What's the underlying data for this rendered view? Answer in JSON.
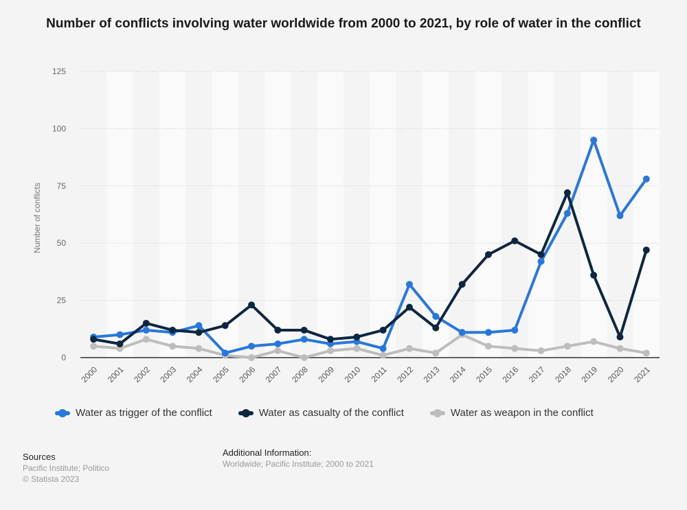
{
  "title": "Number of conflicts involving water worldwide from 2000 to 2021, by role of water in the conflict",
  "chart_data": {
    "type": "line",
    "title": "Number of conflicts involving water worldwide from 2000 to 2021, by role of water in the conflict",
    "xlabel": "",
    "ylabel": "Number of conflicts",
    "ylim": [
      0,
      125
    ],
    "yticks": [
      0,
      25,
      50,
      75,
      100,
      125
    ],
    "grid": true,
    "legend_position": "bottom",
    "categories": [
      "2000",
      "2001",
      "2002",
      "2003",
      "2004",
      "2005",
      "2006",
      "2007",
      "2008",
      "2009",
      "2010",
      "2011",
      "2012",
      "2013",
      "2014",
      "2015",
      "2016",
      "2017",
      "2018",
      "2019",
      "2020",
      "2021"
    ],
    "series": [
      {
        "name": "Water as trigger of the conflict",
        "color": "#2878db",
        "values": [
          9,
          10,
          12,
          11,
          14,
          2,
          5,
          6,
          8,
          6,
          7,
          4,
          32,
          18,
          11,
          11,
          12,
          42,
          63,
          95,
          62,
          78
        ]
      },
      {
        "name": "Water as casualty of the conflict",
        "color": "#0e2740",
        "values": [
          8,
          6,
          15,
          12,
          11,
          14,
          23,
          12,
          12,
          8,
          9,
          12,
          22,
          13,
          32,
          45,
          51,
          45,
          72,
          36,
          9,
          47
        ]
      },
      {
        "name": "Water as weapon in the conflict",
        "color": "#bdbdbd",
        "values": [
          5,
          4,
          8,
          5,
          4,
          1,
          0,
          3,
          0,
          3,
          4,
          1,
          4,
          2,
          10,
          5,
          4,
          3,
          5,
          7,
          4,
          2
        ]
      }
    ]
  },
  "footer": {
    "sources_label": "Sources",
    "sources_text": "Pacific Institute; Politico",
    "copyright": "© Statista 2023",
    "additional_label": "Additional Information:",
    "additional_text": "Worldwide; Pacific Institute; 2000 to 2021"
  }
}
